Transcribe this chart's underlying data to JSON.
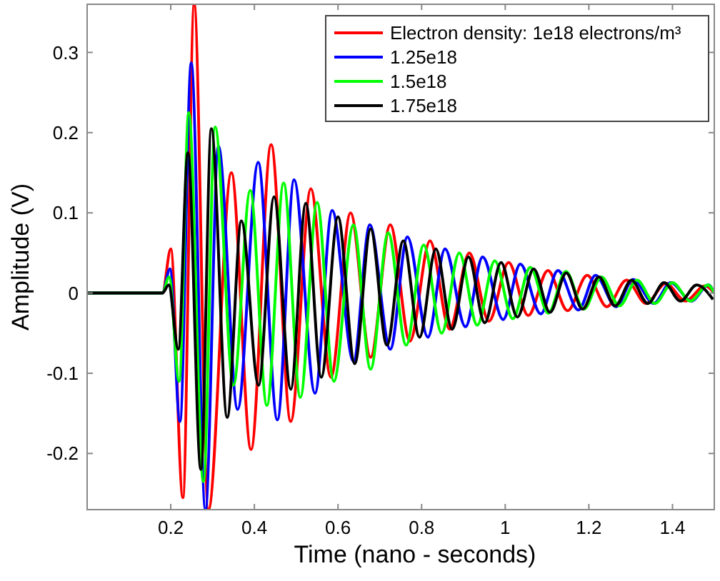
{
  "chart_data": {
    "type": "line",
    "xlabel": "Time (nano - seconds)",
    "ylabel": "Amplitude (V)",
    "xlim": [
      0,
      1.5
    ],
    "xticks": [
      0.2,
      0.4,
      0.6,
      0.8,
      1,
      1.2,
      1.4
    ],
    "ylim": [
      -0.27,
      0.36
    ],
    "yticks": [
      -0.2,
      -0.1,
      0,
      0.1,
      0.2,
      0.3
    ],
    "grid": false,
    "legend": "top right",
    "marker": "none",
    "line_style": "solid",
    "series": [
      {
        "name": "Electron density: 1e18 electrons/m³",
        "color": "#ff0000",
        "x": [
          0,
          0.18,
          0.2,
          0.229,
          0.256,
          0.29,
          0.345,
          0.392,
          0.44,
          0.487,
          0.535,
          0.583,
          0.63,
          0.678,
          0.725,
          0.772,
          0.82,
          0.867,
          0.914,
          0.961,
          1.008,
          1.055,
          1.102,
          1.149,
          1.196,
          1.243,
          1.29,
          1.337,
          1.384,
          1.431,
          1.478,
          1.5
        ],
        "values": [
          0,
          0,
          0.055,
          -0.255,
          0.36,
          -0.27,
          0.15,
          -0.195,
          0.185,
          -0.16,
          0.13,
          -0.105,
          0.1,
          -0.08,
          0.085,
          -0.06,
          0.065,
          -0.045,
          0.05,
          -0.035,
          0.038,
          -0.028,
          0.028,
          -0.022,
          0.022,
          -0.017,
          0.016,
          -0.013,
          0.012,
          -0.01,
          0.009,
          0
        ]
      },
      {
        "name": "1.25e18",
        "color": "#0000ff",
        "x": [
          0,
          0.18,
          0.198,
          0.222,
          0.249,
          0.283,
          0.314,
          0.36,
          0.409,
          0.455,
          0.495,
          0.545,
          0.586,
          0.637,
          0.676,
          0.725,
          0.766,
          0.815,
          0.856,
          0.905,
          0.946,
          0.995,
          1.036,
          1.085,
          1.126,
          1.175,
          1.216,
          1.265,
          1.306,
          1.355,
          1.396,
          1.445,
          1.486,
          1.5
        ],
        "values": [
          0,
          0,
          0.03,
          -0.16,
          0.287,
          -0.27,
          0.183,
          -0.145,
          0.163,
          -0.158,
          0.141,
          -0.125,
          0.103,
          -0.085,
          0.085,
          -0.07,
          0.07,
          -0.055,
          0.055,
          -0.042,
          0.045,
          -0.033,
          0.036,
          -0.026,
          0.028,
          -0.021,
          0.022,
          -0.017,
          0.017,
          -0.013,
          0.013,
          -0.01,
          0.01,
          0
        ]
      },
      {
        "name": "1.5e18",
        "color": "#00ff00",
        "x": [
          0,
          0.18,
          0.196,
          0.22,
          0.243,
          0.278,
          0.306,
          0.35,
          0.39,
          0.43,
          0.47,
          0.51,
          0.55,
          0.59,
          0.637,
          0.678,
          0.72,
          0.763,
          0.805,
          0.848,
          0.89,
          0.933,
          0.975,
          1.018,
          1.06,
          1.103,
          1.145,
          1.188,
          1.23,
          1.273,
          1.315,
          1.358,
          1.4,
          1.443,
          1.485,
          1.5
        ],
        "values": [
          0,
          0,
          0.02,
          -0.11,
          0.225,
          -0.235,
          0.207,
          -0.115,
          0.128,
          -0.14,
          0.137,
          -0.13,
          0.113,
          -0.11,
          0.085,
          -0.095,
          0.075,
          -0.065,
          0.06,
          -0.05,
          0.05,
          -0.04,
          0.04,
          -0.032,
          0.032,
          -0.025,
          0.027,
          -0.02,
          0.02,
          -0.016,
          0.016,
          -0.013,
          0.013,
          -0.01,
          0.01,
          0
        ]
      },
      {
        "name": "1.75e18",
        "color": "#000000",
        "x": [
          0,
          0.18,
          0.195,
          0.218,
          0.241,
          0.272,
          0.297,
          0.335,
          0.369,
          0.41,
          0.447,
          0.487,
          0.523,
          0.56,
          0.6,
          0.64,
          0.678,
          0.717,
          0.756,
          0.795,
          0.834,
          0.873,
          0.912,
          0.951,
          0.99,
          1.029,
          1.068,
          1.107,
          1.146,
          1.185,
          1.224,
          1.263,
          1.302,
          1.341,
          1.38,
          1.419,
          1.458,
          1.497
        ],
        "values": [
          0,
          0,
          0.01,
          -0.07,
          0.175,
          -0.22,
          0.205,
          -0.155,
          0.09,
          -0.115,
          0.12,
          -0.12,
          0.112,
          -0.105,
          0.095,
          -0.088,
          0.08,
          -0.065,
          0.065,
          -0.055,
          0.055,
          -0.045,
          0.045,
          -0.037,
          0.038,
          -0.03,
          0.03,
          -0.024,
          0.025,
          -0.02,
          0.02,
          -0.016,
          0.016,
          -0.013,
          0.013,
          -0.01,
          0.01,
          -0.008
        ]
      }
    ]
  }
}
